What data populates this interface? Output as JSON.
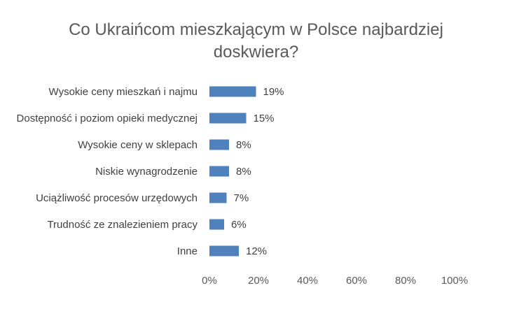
{
  "chart_data": {
    "type": "bar",
    "orientation": "horizontal",
    "title": "Co Ukraińcom mieszkającym w Polsce najbardziej doskwiera?",
    "title_lines": [
      "Co Ukraińcom mieszkającym w Polsce najbardziej",
      "doskwiera?"
    ],
    "categories": [
      "Wysokie ceny mieszkań i najmu",
      "Dostępność i poziom opieki medycznej",
      "Wysokie ceny w sklepach",
      "Niskie wynagrodzenie",
      "Uciążliwość procesów urzędowych",
      "Trudność ze znalezieniem pracy",
      "Inne"
    ],
    "values": [
      19,
      15,
      8,
      8,
      7,
      6,
      12
    ],
    "value_labels": [
      "19%",
      "15%",
      "8%",
      "8%",
      "7%",
      "6%",
      "12%"
    ],
    "xlim": [
      0,
      100
    ],
    "x_ticks": [
      0,
      20,
      40,
      60,
      80,
      100
    ],
    "x_tick_labels": [
      "0%",
      "20%",
      "40%",
      "60%",
      "80%",
      "100%"
    ],
    "xlabel": "",
    "ylabel": "",
    "grid": false,
    "legend": "none",
    "bar_color": "#4f81bd"
  }
}
